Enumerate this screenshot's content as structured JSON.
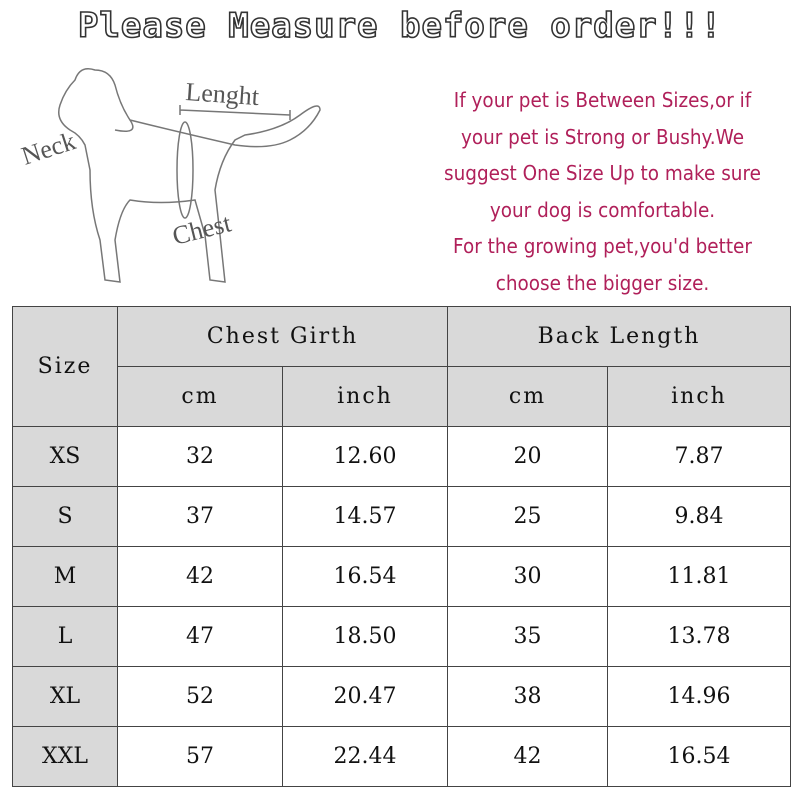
{
  "title": "Please Measure before order!!!",
  "diagram": {
    "labels": {
      "neck": "Neck",
      "length": "Lenght",
      "chest": "Chest"
    }
  },
  "note": [
    "If your pet is Between Sizes,or if",
    "your pet is Strong or Bushy.We",
    "suggest One Size Up to make sure",
    "your dog is comfortable.",
    "For the growing pet,you'd better",
    "choose the bigger size."
  ],
  "note_color": "#b0205a",
  "table": {
    "size_header": "Size",
    "groups": [
      "Chest Girth",
      "Back Length"
    ],
    "units": [
      "cm",
      "inch",
      "cm",
      "inch"
    ],
    "rows": [
      [
        "XS",
        "32",
        "12.60",
        "20",
        "7.87"
      ],
      [
        "S",
        "37",
        "14.57",
        "25",
        "9.84"
      ],
      [
        "M",
        "42",
        "16.54",
        "30",
        "11.81"
      ],
      [
        "L",
        "47",
        "18.50",
        "35",
        "13.78"
      ],
      [
        "XL",
        "52",
        "20.47",
        "38",
        "14.96"
      ],
      [
        "XXL",
        "57",
        "22.44",
        "42",
        "16.54"
      ]
    ]
  }
}
